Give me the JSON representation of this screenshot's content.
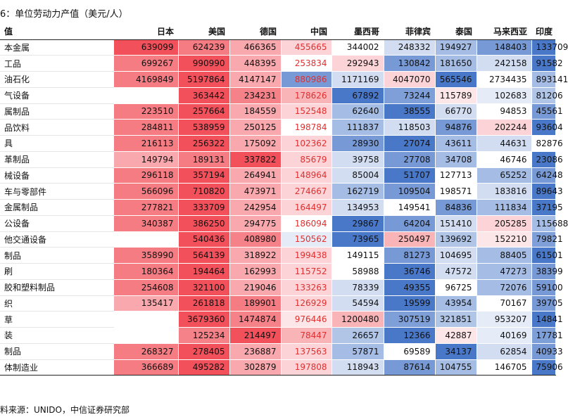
{
  "title": "6：单位劳动力产值（美元/人）",
  "source": "料来源：UNIDO，中信证券研究部",
  "chart_data": {
    "type": "heatmap",
    "title": "6：单位劳动力产值（美元/人）",
    "row_header": "值",
    "columns": [
      "日本",
      "美国",
      "德国",
      "中国",
      "墨西哥",
      "菲律宾",
      "泰国",
      "马来西亚",
      "印度"
    ],
    "rows": [
      {
        "label": "本金属",
        "values": [
          639099,
          624239,
          466365,
          455665,
          344002,
          248332,
          194927,
          148403,
          133709
        ]
      },
      {
        "label": "工品",
        "values": [
          699267,
          990990,
          448395,
          253834,
          292943,
          130842,
          181650,
          242158,
          91582
        ]
      },
      {
        "label": "油石化",
        "values": [
          4169849,
          5197864,
          4147147,
          880986,
          1171169,
          4047070,
          565546,
          2734435,
          893141
        ]
      },
      {
        "label": "气设备",
        "values": [
          null,
          363442,
          234231,
          178626,
          67892,
          73244,
          115789,
          102683,
          81206
        ]
      },
      {
        "label": "属制品",
        "values": [
          223510,
          257664,
          184559,
          152548,
          62640,
          38555,
          66770,
          94853,
          45561
        ]
      },
      {
        "label": "品饮料",
        "values": [
          284811,
          538959,
          250125,
          198784,
          111837,
          118503,
          94876,
          202244,
          93604
        ]
      },
      {
        "label": "具",
        "values": [
          216113,
          256322,
          175092,
          102362,
          28930,
          27074,
          43611,
          44631,
          82876
        ]
      },
      {
        "label": "革制品",
        "values": [
          149794,
          189131,
          337822,
          85679,
          39758,
          27708,
          34708,
          46746,
          23086
        ]
      },
      {
        "label": "械设备",
        "values": [
          296118,
          357194,
          264941,
          148964,
          85004,
          51707,
          127713,
          65252,
          64248
        ]
      },
      {
        "label": "车与零部件",
        "values": [
          566096,
          710820,
          473971,
          274667,
          162719,
          109504,
          198571,
          183816,
          89643
        ]
      },
      {
        "label": "金属制品",
        "values": [
          277821,
          333709,
          242954,
          164497,
          134953,
          149541,
          84836,
          111834,
          37195
        ]
      },
      {
        "label": "公设备",
        "values": [
          340387,
          386250,
          294775,
          186094,
          29867,
          64204,
          151410,
          205285,
          115688
        ]
      },
      {
        "label": "他交通设备",
        "values": [
          null,
          540436,
          408980,
          150562,
          73965,
          250497,
          139692,
          152210,
          79821
        ]
      },
      {
        "label": "制品",
        "values": [
          358990,
          564139,
          318922,
          199438,
          149115,
          81273,
          104695,
          88405,
          61501
        ]
      },
      {
        "label": "刷",
        "values": [
          180364,
          194464,
          162993,
          115752,
          58988,
          36746,
          47572,
          47273,
          38399
        ]
      },
      {
        "label": "胶和塑料制品",
        "values": [
          254608,
          321100,
          219046,
          133263,
          78339,
          49355,
          96725,
          72076,
          59100
        ]
      },
      {
        "label": "织",
        "values": [
          135417,
          261818,
          189901,
          126929,
          54594,
          19599,
          43954,
          70167,
          39705
        ]
      },
      {
        "label": "草",
        "values": [
          null,
          3679360,
          1474874,
          976446,
          1200480,
          307519,
          321851,
          953207,
          14841
        ]
      },
      {
        "label": "装",
        "values": [
          null,
          125234,
          214497,
          78447,
          26657,
          12366,
          42887,
          40169,
          17781
        ]
      },
      {
        "label": "制品",
        "values": [
          268327,
          278405,
          236887,
          137563,
          57871,
          69589,
          34137,
          62854,
          40933
        ]
      },
      {
        "label": "体制造业",
        "values": [
          366689,
          495282,
          302879,
          197808,
          118943,
          87614,
          104755,
          146705,
          75906
        ]
      }
    ],
    "highlight_column": "中国",
    "highlight_text_color": "#e03030",
    "color_scale": {
      "low": "#4a78c8",
      "mid": "#ffffff",
      "high": "#f2505a",
      "per_row": true
    }
  }
}
